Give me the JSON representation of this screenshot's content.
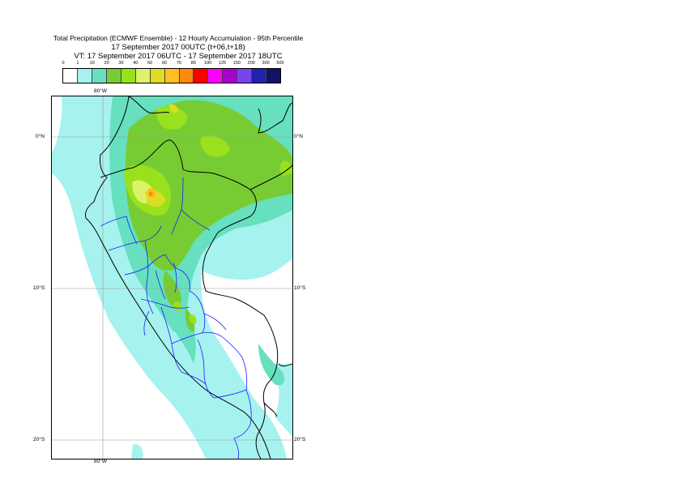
{
  "title": {
    "line1": "Total Precipitation (ECMWF Ensemble) - 12 Hourly Accumulation - 95th Percentile",
    "line2": "17 September 2017 00UTC (t+06,t+18)",
    "line3": "VT: 17 September 2017 06UTC - 17 September 2017 18UTC"
  },
  "legend": {
    "labels": [
      "0",
      "1",
      "10",
      "20",
      "30",
      "40",
      "50",
      "60",
      "70",
      "80",
      "100",
      "125",
      "150",
      "200",
      "300",
      "500"
    ],
    "colors": [
      "#ffffff",
      "#a6f2ee",
      "#66e0bf",
      "#77cc33",
      "#99e11d",
      "#ddf26a",
      "#dddd22",
      "#ffc022",
      "#ff8811",
      "#ff0000",
      "#ff00ff",
      "#aa00cc",
      "#7744ee",
      "#2222aa",
      "#111166"
    ]
  },
  "map": {
    "lon_top": "80°W",
    "lon_bottom": "80°W",
    "lat_0_left": "0°N",
    "lat_0_right": "0°N",
    "lat_10_left": "10°S",
    "lat_10_right": "10°S",
    "lat_20_left": "20°S",
    "lat_20_right": "20°S"
  }
}
